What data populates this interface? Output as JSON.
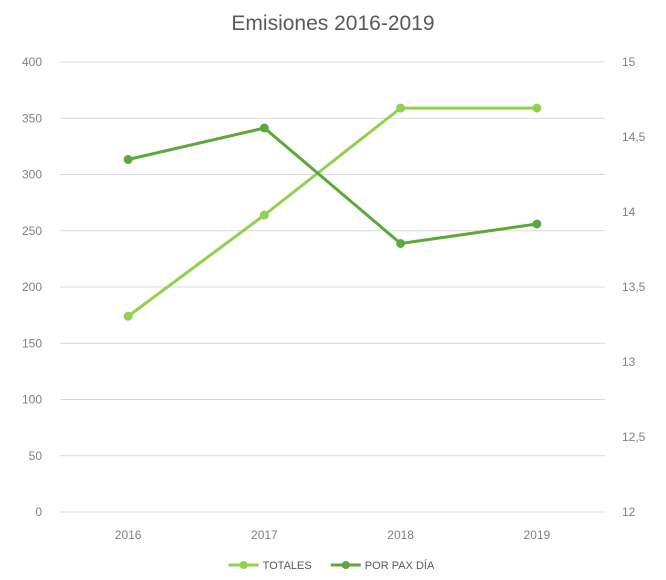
{
  "chart_data": {
    "type": "line",
    "title": "Emisiones 2016-2019",
    "categories": [
      "2016",
      "2017",
      "2018",
      "2019"
    ],
    "y_left": {
      "min": 0,
      "max": 400,
      "ticks": [
        "0",
        "50",
        "100",
        "150",
        "200",
        "250",
        "300",
        "350",
        "400"
      ]
    },
    "y_right": {
      "min": 12,
      "max": 15,
      "ticks": [
        "12",
        "12,5",
        "13",
        "13,5",
        "14",
        "14,5",
        "15"
      ]
    },
    "grid": true,
    "legend_position": "bottom",
    "series": [
      {
        "name": "TOTALES",
        "axis": "left",
        "color": "#92d050",
        "values": [
          174,
          264,
          359,
          359
        ]
      },
      {
        "name": "POR PAX DÍA",
        "axis": "right",
        "color": "#5da83a",
        "values": [
          14.35,
          14.56,
          13.79,
          13.92
        ]
      }
    ]
  }
}
